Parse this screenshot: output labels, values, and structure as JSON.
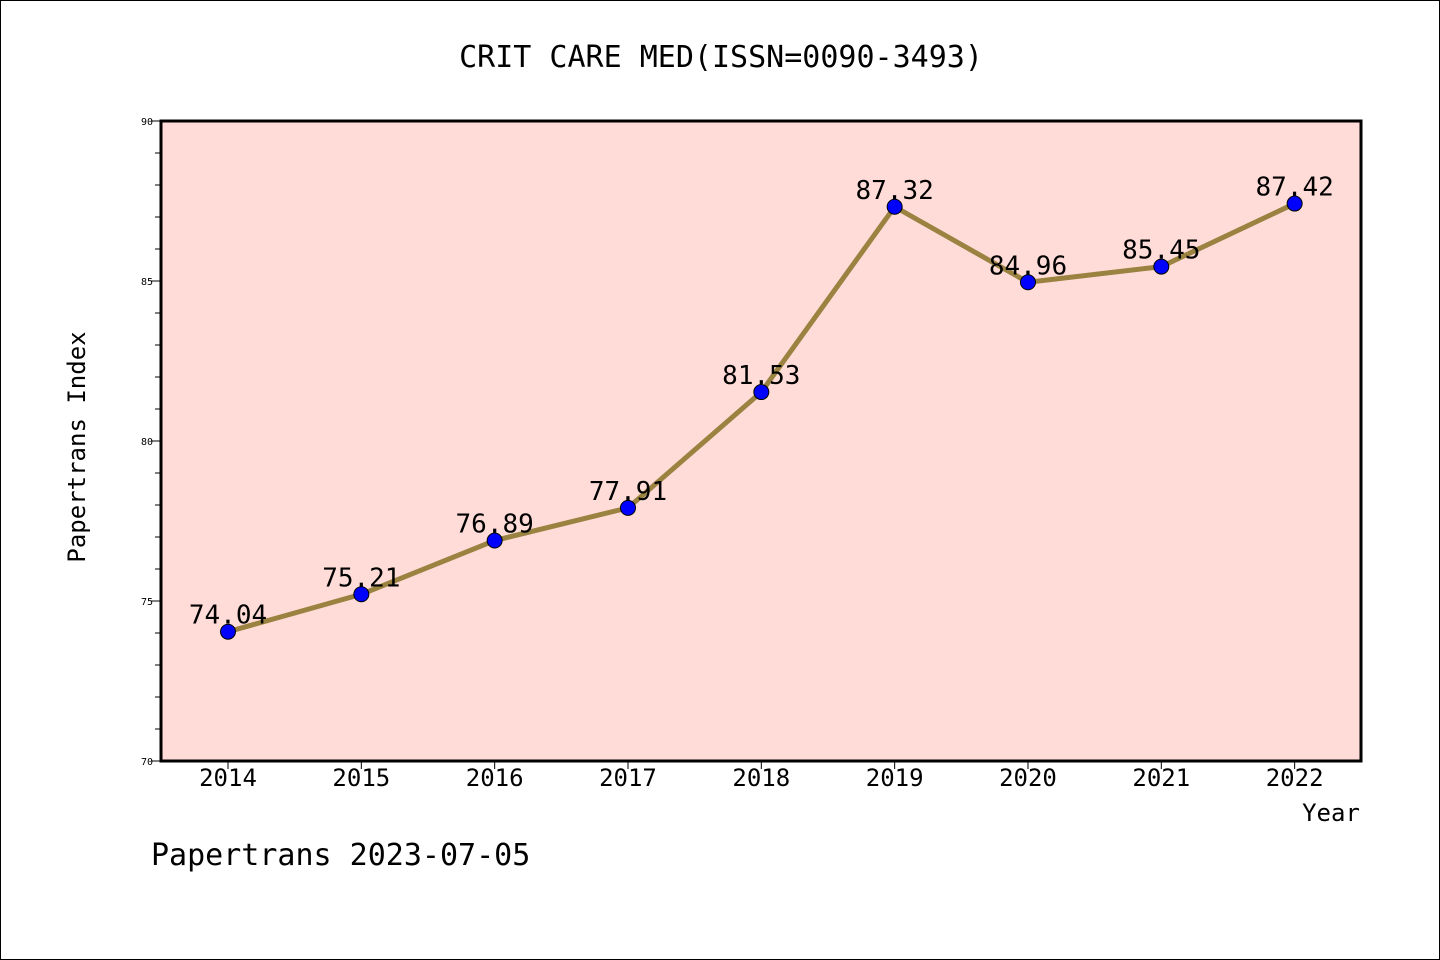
{
  "chart_data": {
    "type": "line",
    "title": "CRIT CARE MED(ISSN=0090-3493)",
    "xlabel": "Year",
    "ylabel": "Papertrans Index",
    "categories": [
      "2014",
      "2015",
      "2016",
      "2017",
      "2018",
      "2019",
      "2020",
      "2021",
      "2022"
    ],
    "values": [
      74.04,
      75.21,
      76.89,
      77.91,
      81.53,
      87.32,
      84.96,
      85.45,
      87.42
    ],
    "value_labels": [
      "74.04",
      "75.21",
      "76.89",
      "77.91",
      "81.53",
      "87.32",
      "84.96",
      "85.45",
      "87.42"
    ],
    "ylim": [
      70,
      90
    ],
    "y_ticks": [
      "70",
      "75",
      "80",
      "85",
      "90"
    ],
    "grid": false,
    "colors": {
      "plot_background": "#ffdcd8",
      "line": "#9a8240",
      "marker": "#0000ff"
    }
  },
  "footer": {
    "text": "Papertrans 2023-07-05"
  }
}
